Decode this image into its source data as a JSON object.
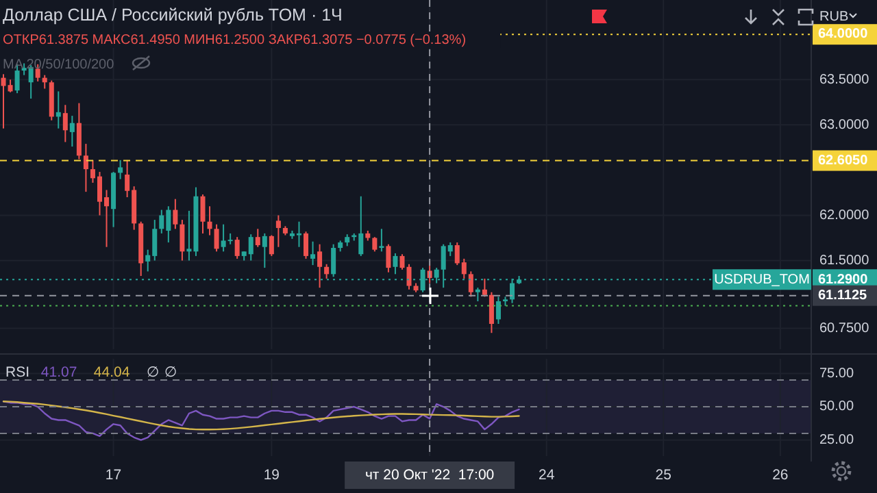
{
  "chart_data": [
    {
      "type": "candlestick",
      "title": "Доллар США / Российский рубль TOM · 1Ч",
      "subtitle": "ОТКР61.3875 МАКС61.4950 МИН61.2500 ЗАКР61.3075 −0.0775 (−0.13%)",
      "ylabel": "RUB",
      "annotations": [
        "MA 20/50/100/200",
        {
          "text": "USDRUB_TOM",
          "y": 61.29
        }
      ],
      "categories": [
        null,
        null,
        null,
        null,
        null,
        null,
        null,
        null,
        null,
        null,
        null,
        null,
        null,
        null,
        null,
        null,
        "17",
        null,
        null,
        null,
        null,
        null,
        null,
        null,
        null,
        null,
        null,
        null,
        null,
        null,
        null,
        null,
        null,
        null,
        null,
        null,
        null,
        null,
        null,
        "19",
        null,
        null,
        null,
        null,
        null,
        null,
        null,
        null,
        null,
        null,
        null,
        null,
        null,
        null,
        null,
        null,
        null,
        null,
        null,
        null,
        null,
        null,
        "чт 20 Окт '22  17:00",
        null,
        null,
        null,
        null,
        null,
        null,
        null,
        null,
        null,
        null,
        null,
        null,
        null,
        null,
        null,
        null,
        "24",
        null,
        null,
        null,
        null,
        null,
        null,
        null,
        null,
        null,
        null,
        null,
        null,
        null,
        null,
        null,
        null,
        "25",
        null,
        null,
        null,
        null,
        null,
        null,
        null,
        null,
        null,
        null,
        null,
        null,
        null,
        null,
        null,
        null,
        "26",
        null,
        null,
        null,
        null
      ],
      "ohlc": [
        [
          63.52,
          63.56,
          62.96,
          63.43
        ],
        [
          63.44,
          63.5,
          63.36,
          63.37
        ],
        [
          63.38,
          63.67,
          63.35,
          63.6
        ],
        [
          63.6,
          63.68,
          63.55,
          63.63
        ],
        [
          63.47,
          63.66,
          63.29,
          63.64
        ],
        [
          63.62,
          63.67,
          63.48,
          63.52
        ],
        [
          63.52,
          63.55,
          63.4,
          63.47
        ],
        [
          63.47,
          63.49,
          63.05,
          63.09
        ],
        [
          63.09,
          63.37,
          62.96,
          63.14
        ],
        [
          63.13,
          63.22,
          62.81,
          62.94
        ],
        [
          62.92,
          63.1,
          62.76,
          63.02
        ],
        [
          63.02,
          63.24,
          62.62,
          62.66
        ],
        [
          62.66,
          62.79,
          62.26,
          62.51
        ],
        [
          62.51,
          62.61,
          62.36,
          62.41
        ],
        [
          62.43,
          62.48,
          62.0,
          62.15
        ],
        [
          62.2,
          62.28,
          61.65,
          62.1
        ],
        [
          62.07,
          62.48,
          61.87,
          62.47
        ],
        [
          62.47,
          62.61,
          62.4,
          62.53
        ],
        [
          62.45,
          62.61,
          62.2,
          62.27
        ],
        [
          62.28,
          62.32,
          61.84,
          61.91
        ],
        [
          61.91,
          61.93,
          61.33,
          61.47
        ],
        [
          61.49,
          61.62,
          61.38,
          61.56
        ],
        [
          61.55,
          61.95,
          61.5,
          61.85
        ],
        [
          61.85,
          62.06,
          61.8,
          62.0
        ],
        [
          61.83,
          62.1,
          61.7,
          62.06
        ],
        [
          62.06,
          62.18,
          61.85,
          61.9
        ],
        [
          61.9,
          61.95,
          61.5,
          61.6
        ],
        [
          61.6,
          62.05,
          61.5,
          61.63
        ],
        [
          61.6,
          62.31,
          61.55,
          62.21
        ],
        [
          62.21,
          62.23,
          61.8,
          61.93
        ],
        [
          61.93,
          62.1,
          61.78,
          61.85
        ],
        [
          61.85,
          61.9,
          61.6,
          61.63
        ],
        [
          61.65,
          61.9,
          61.6,
          61.72
        ],
        [
          61.72,
          61.8,
          61.68,
          61.73
        ],
        [
          61.73,
          61.76,
          61.52,
          61.55
        ],
        [
          61.55,
          61.6,
          61.5,
          61.6
        ],
        [
          61.57,
          61.79,
          61.5,
          61.76
        ],
        [
          61.76,
          61.85,
          61.65,
          61.67
        ],
        [
          61.65,
          61.8,
          61.42,
          61.77
        ],
        [
          61.77,
          61.78,
          61.55,
          61.57
        ],
        [
          61.94,
          62.0,
          61.65,
          61.86
        ],
        [
          61.86,
          61.88,
          61.78,
          61.8
        ],
        [
          61.77,
          61.83,
          61.74,
          61.8
        ],
        [
          61.78,
          61.93,
          61.65,
          61.8
        ],
        [
          61.8,
          61.82,
          61.52,
          61.55
        ],
        [
          61.52,
          61.71,
          61.45,
          61.57
        ],
        [
          61.6,
          61.68,
          61.2,
          61.43
        ],
        [
          61.43,
          61.46,
          61.3,
          61.35
        ],
        [
          61.35,
          61.68,
          61.32,
          61.64
        ],
        [
          61.64,
          61.72,
          61.6,
          61.7
        ],
        [
          61.7,
          61.79,
          61.66,
          61.76
        ],
        [
          61.76,
          61.8,
          61.72,
          61.78
        ],
        [
          61.57,
          62.21,
          61.55,
          61.8
        ],
        [
          61.8,
          61.83,
          61.72,
          61.75
        ],
        [
          61.75,
          61.76,
          61.6,
          61.62
        ],
        [
          61.64,
          61.85,
          61.6,
          61.66
        ],
        [
          61.66,
          61.68,
          61.37,
          61.42
        ],
        [
          61.43,
          61.58,
          61.35,
          61.55
        ],
        [
          61.55,
          61.57,
          61.4,
          61.42
        ],
        [
          61.43,
          61.46,
          61.18,
          61.22
        ],
        [
          61.22,
          61.25,
          61.15,
          61.17
        ],
        [
          61.17,
          61.42,
          61.15,
          61.4
        ],
        [
          61.3875,
          61.495,
          61.25,
          61.3075
        ],
        [
          61.31,
          61.42,
          61.25,
          61.4
        ],
        [
          61.4,
          61.68,
          61.2,
          61.66
        ],
        [
          61.6,
          61.7,
          61.55,
          61.67
        ],
        [
          61.67,
          61.7,
          61.45,
          61.47
        ],
        [
          61.48,
          61.52,
          61.3,
          61.35
        ],
        [
          61.35,
          61.38,
          61.1,
          61.15
        ],
        [
          61.15,
          61.2,
          61.05,
          61.18
        ],
        [
          61.18,
          61.3,
          61.1,
          61.12
        ],
        [
          61.12,
          61.15,
          60.7,
          60.8
        ],
        [
          60.85,
          61.1,
          60.8,
          61.05
        ],
        [
          61.05,
          61.1,
          61.0,
          61.07
        ],
        [
          61.07,
          61.3,
          61.03,
          61.25
        ],
        [
          61.25,
          61.33,
          61.24,
          61.29
        ],
        null,
        null,
        null,
        null,
        null,
        null,
        null,
        null,
        null,
        null,
        null,
        null,
        null,
        null,
        null,
        null,
        null,
        null,
        null,
        null,
        null,
        null,
        null,
        null,
        null,
        null,
        null,
        null,
        null,
        null,
        null,
        null,
        null,
        null,
        null,
        null,
        null,
        null,
        null,
        null,
        null,
        null
      ],
      "ylim": [
        60.52,
        64.38
      ],
      "yticks": [
        {
          "value": 60.75,
          "label": "60.7500"
        },
        {
          "value": 61.5,
          "label": "61.5000"
        },
        {
          "value": 62,
          "label": "62.0000"
        },
        {
          "value": 63,
          "label": "63.0000"
        },
        {
          "value": 63.5,
          "label": "63.5000"
        }
      ],
      "grid": true,
      "tick_labels": "y",
      "ref_lines": [
        {
          "axis": "y",
          "value": 64.0,
          "label": "64.0000",
          "color": "#f5d33b",
          "line_style": "dotted"
        },
        {
          "axis": "y",
          "value": 62.605,
          "label": "62.6050",
          "color": "#f5d33b",
          "line_style": "dashed"
        },
        {
          "axis": "y",
          "value": 61.0,
          "label": null,
          "color": "#4caf50",
          "line_style": "dotted"
        },
        {
          "axis": "y",
          "value": 61.29,
          "label": "61.2900",
          "color": "#26a69a",
          "line_style": "dotted"
        },
        {
          "axis": "y",
          "value": 61.1125,
          "label": "61.1125",
          "color": "#9598a1",
          "line_style": "dashed"
        },
        {
          "axis": "x",
          "value": "чт 20 Окт '22  17:00",
          "color": "#9598a1",
          "line_style": "dashed"
        }
      ]
    },
    {
      "type": "line",
      "categories": [
        null,
        null,
        null,
        null,
        null,
        null,
        null,
        null,
        null,
        null,
        null,
        null,
        null,
        null,
        null,
        null,
        "17",
        null,
        null,
        null,
        null,
        null,
        null,
        null,
        null,
        null,
        null,
        null,
        null,
        null,
        null,
        null,
        null,
        null,
        null,
        null,
        null,
        null,
        null,
        "19",
        null,
        null,
        null,
        null,
        null,
        null,
        null,
        null,
        null,
        null,
        null,
        null,
        null,
        null,
        null,
        null,
        null,
        null,
        null,
        null,
        null,
        null,
        "чт 20 Окт '22  17:00",
        null,
        null,
        null,
        null,
        null,
        null,
        null,
        null,
        null,
        null,
        null,
        null,
        null,
        null,
        null,
        null,
        "24",
        null,
        null,
        null,
        null,
        null,
        null,
        null,
        null,
        null,
        null,
        null,
        null,
        null,
        null,
        null,
        null,
        "25",
        null,
        null,
        null,
        null,
        null,
        null,
        null,
        null,
        null,
        null,
        null,
        null,
        null,
        null,
        null,
        null,
        "26",
        null,
        null,
        null,
        null
      ],
      "series": [
        {
          "color": "#7e57c2",
          "values": [
            54,
            53,
            53,
            52,
            52,
            50,
            45,
            41,
            40,
            40,
            38,
            36,
            31,
            30,
            28,
            33,
            37,
            36,
            30,
            27,
            25,
            27,
            32,
            37,
            40,
            38,
            36,
            45,
            47,
            44,
            43,
            41,
            41,
            42,
            42,
            43,
            42,
            42,
            45,
            47,
            47,
            46,
            46,
            44,
            44,
            42,
            39,
            42,
            47,
            48,
            49,
            50,
            48,
            46,
            43,
            41,
            43,
            43,
            39,
            40,
            40,
            44,
            41.07,
            52,
            50,
            47,
            43,
            41,
            40,
            39,
            33,
            37,
            42,
            43,
            46,
            48,
            null,
            null,
            null,
            null,
            null,
            null,
            null,
            null,
            null,
            null,
            null,
            null,
            null,
            null,
            null,
            null,
            null,
            null,
            null,
            null,
            null,
            null,
            null,
            null,
            null,
            null,
            null,
            null,
            null,
            null,
            null,
            null,
            null,
            null,
            null,
            null,
            null,
            null,
            null,
            null,
            null,
            null
          ]
        },
        {
          "color": "#d4b54a",
          "values": [
            54,
            53.8,
            53.5,
            53,
            52.6,
            52.2,
            51.6,
            51,
            50.3,
            49.6,
            48.9,
            48.1,
            47.3,
            46.4,
            45.4,
            44.4,
            43.3,
            42.3,
            41.2,
            40.1,
            39.1,
            38,
            37,
            36,
            35.1,
            34.4,
            33.8,
            33.3,
            33,
            32.9,
            32.9,
            33,
            33.2,
            33.5,
            33.9,
            34.4,
            34.9,
            35.5,
            36.1,
            36.7,
            37.3,
            37.9,
            38.5,
            39.1,
            39.7,
            40.3,
            40.9,
            41.4,
            41.9,
            42.4,
            42.8,
            43.2,
            43.5,
            43.8,
            44.1,
            44.3,
            44.5,
            44.6,
            44.6,
            44.5,
            44.4,
            44.2,
            44.04,
            43.9,
            43.8,
            43.7,
            43.5,
            43.3,
            43.1,
            42.9,
            42.7,
            42.5,
            42.5,
            42.6,
            42.8,
            43.1,
            null,
            null,
            null,
            null,
            null,
            null,
            null,
            null,
            null,
            null,
            null,
            null,
            null,
            null,
            null,
            null,
            null,
            null,
            null,
            null,
            null,
            null,
            null,
            null,
            null,
            null,
            null,
            null,
            null,
            null,
            null,
            null,
            null,
            null,
            null,
            null,
            null,
            null,
            null,
            null,
            null,
            null
          ]
        }
      ],
      "ylim": [
        13,
        86
      ],
      "yticks": [
        {
          "value": 25,
          "label": "25.00"
        },
        {
          "value": 50,
          "label": "50.00"
        },
        {
          "value": 75,
          "label": "75.00"
        }
      ],
      "grid": true,
      "annotations": [
        "RSI",
        "41.07",
        "44.04",
        "∅ ∅"
      ],
      "bands": [
        {
          "axis": "y",
          "from": 30,
          "to": 70,
          "color": "#7e57c2"
        }
      ],
      "ref_lines": [
        {
          "axis": "y",
          "value": 70,
          "color": "#787b86",
          "line_style": "dashed"
        },
        {
          "axis": "y",
          "value": 50,
          "color": "#787b86",
          "line_style": "dashed"
        },
        {
          "axis": "y",
          "value": 30,
          "color": "#787b86",
          "line_style": "dashed"
        },
        {
          "axis": "x",
          "value": "чт 20 Окт '22  17:00",
          "color": "#9598a1",
          "line_style": "dashed"
        }
      ]
    }
  ]
}
